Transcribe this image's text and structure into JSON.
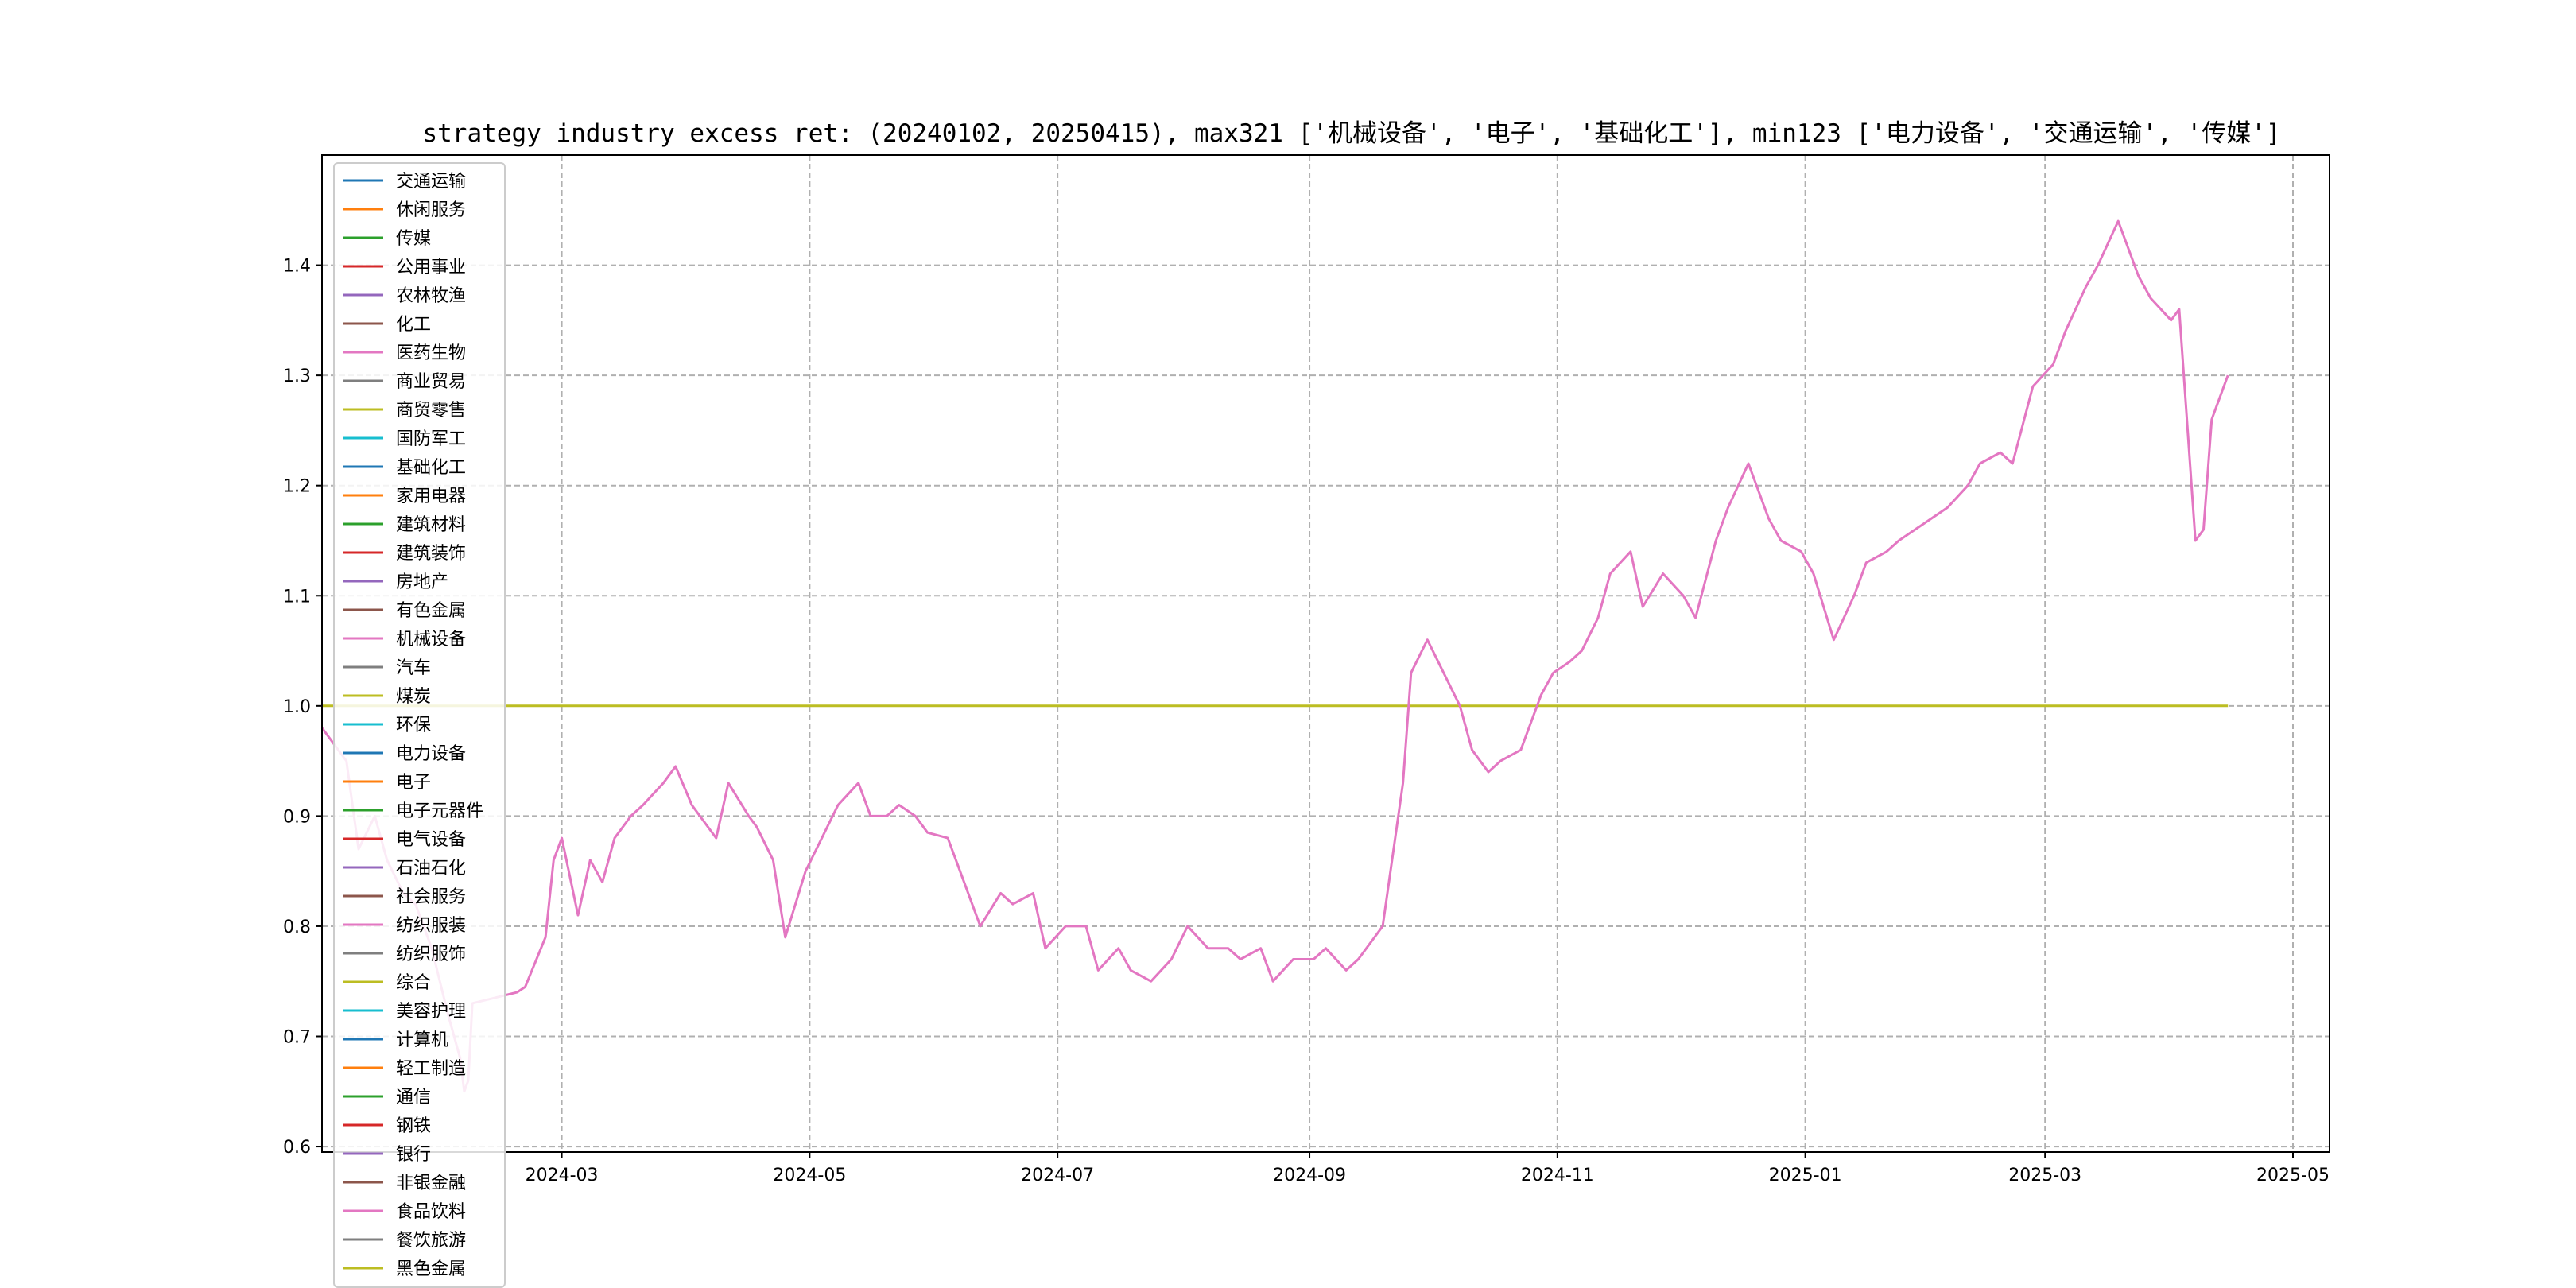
{
  "chart_data": {
    "type": "line",
    "title": "strategy industry excess ret: (20240102, 20250415), max321 ['机械设备', '电子', '基础化工'], min123 ['电力设备', '交通运输', '传媒']",
    "xlabel": "",
    "ylabel": "",
    "xlim": [
      "2024-01-02",
      "2025-05-10"
    ],
    "ylim": [
      0.595,
      1.5
    ],
    "grid": true,
    "legend_location": "left",
    "x_ticks": [
      "2024-03-01",
      "2024-05-01",
      "2024-07-01",
      "2024-09-01",
      "2024-11-01",
      "2025-01-01",
      "2025-03-01",
      "2025-05-01"
    ],
    "x_tick_labels": [
      "2024-03",
      "2024-05",
      "2024-07",
      "2024-09",
      "2024-11",
      "2025-01",
      "2025-03",
      "2025-05"
    ],
    "y_ticks": [
      0.6,
      0.7,
      0.8,
      0.9,
      1.0,
      1.1,
      1.2,
      1.3,
      1.4
    ],
    "y_tick_labels": [
      "0.6",
      "0.7",
      "0.8",
      "0.9",
      "1.0",
      "1.1",
      "1.2",
      "1.3",
      "1.4"
    ],
    "legend": [
      {
        "label": "交通运输",
        "color": "#1f77b4"
      },
      {
        "label": "休闲服务",
        "color": "#ff7f0e"
      },
      {
        "label": "传媒",
        "color": "#2ca02c"
      },
      {
        "label": "公用事业",
        "color": "#d62728"
      },
      {
        "label": "农林牧渔",
        "color": "#9467bd"
      },
      {
        "label": "化工",
        "color": "#8c564b"
      },
      {
        "label": "医药生物",
        "color": "#e377c2"
      },
      {
        "label": "商业贸易",
        "color": "#7f7f7f"
      },
      {
        "label": "商贸零售",
        "color": "#bcbd22"
      },
      {
        "label": "国防军工",
        "color": "#17becf"
      },
      {
        "label": "基础化工",
        "color": "#1f77b4"
      },
      {
        "label": "家用电器",
        "color": "#ff7f0e"
      },
      {
        "label": "建筑材料",
        "color": "#2ca02c"
      },
      {
        "label": "建筑装饰",
        "color": "#d62728"
      },
      {
        "label": "房地产",
        "color": "#9467bd"
      },
      {
        "label": "有色金属",
        "color": "#8c564b"
      },
      {
        "label": "机械设备",
        "color": "#e377c2"
      },
      {
        "label": "汽车",
        "color": "#7f7f7f"
      },
      {
        "label": "煤炭",
        "color": "#bcbd22"
      },
      {
        "label": "环保",
        "color": "#17becf"
      },
      {
        "label": "电力设备",
        "color": "#1f77b4"
      },
      {
        "label": "电子",
        "color": "#ff7f0e"
      },
      {
        "label": "电子元器件",
        "color": "#2ca02c"
      },
      {
        "label": "电气设备",
        "color": "#d62728"
      },
      {
        "label": "石油石化",
        "color": "#9467bd"
      },
      {
        "label": "社会服务",
        "color": "#8c564b"
      },
      {
        "label": "纺织服装",
        "color": "#e377c2"
      },
      {
        "label": "纺织服饰",
        "color": "#7f7f7f"
      },
      {
        "label": "综合",
        "color": "#bcbd22"
      },
      {
        "label": "美容护理",
        "color": "#17becf"
      },
      {
        "label": "计算机",
        "color": "#1f77b4"
      },
      {
        "label": "轻工制造",
        "color": "#ff7f0e"
      },
      {
        "label": "通信",
        "color": "#2ca02c"
      },
      {
        "label": "钢铁",
        "color": "#d62728"
      },
      {
        "label": "银行",
        "color": "#9467bd"
      },
      {
        "label": "非银金融",
        "color": "#8c564b"
      },
      {
        "label": "食品饮料",
        "color": "#e377c2"
      },
      {
        "label": "餐饮旅游",
        "color": "#7f7f7f"
      },
      {
        "label": "黑色金属",
        "color": "#bcbd22"
      }
    ],
    "series": [
      {
        "name": "黑色金属",
        "color": "#bcbd22",
        "x": [
          "2024-01-02",
          "2025-04-15"
        ],
        "y": [
          1.0,
          1.0
        ]
      },
      {
        "name": "机械设备",
        "color": "#e377c2",
        "x": [
          "2024-01-02",
          "2024-01-08",
          "2024-01-11",
          "2024-01-15",
          "2024-01-18",
          "2024-01-22",
          "2024-01-25",
          "2024-01-29",
          "2024-01-31",
          "2024-02-02",
          "2024-02-05",
          "2024-02-06",
          "2024-02-07",
          "2024-02-08",
          "2024-02-19",
          "2024-02-21",
          "2024-02-26",
          "2024-02-28",
          "2024-03-01",
          "2024-03-05",
          "2024-03-08",
          "2024-03-11",
          "2024-03-14",
          "2024-03-18",
          "2024-03-21",
          "2024-03-26",
          "2024-03-29",
          "2024-04-02",
          "2024-04-08",
          "2024-04-11",
          "2024-04-16",
          "2024-04-18",
          "2024-04-22",
          "2024-04-25",
          "2024-04-30",
          "2024-05-08",
          "2024-05-13",
          "2024-05-16",
          "2024-05-20",
          "2024-05-23",
          "2024-05-27",
          "2024-05-30",
          "2024-06-04",
          "2024-06-07",
          "2024-06-12",
          "2024-06-17",
          "2024-06-20",
          "2024-06-25",
          "2024-06-28",
          "2024-07-03",
          "2024-07-08",
          "2024-07-11",
          "2024-07-16",
          "2024-07-19",
          "2024-07-24",
          "2024-07-29",
          "2024-08-02",
          "2024-08-07",
          "2024-08-12",
          "2024-08-15",
          "2024-08-20",
          "2024-08-23",
          "2024-08-28",
          "2024-09-02",
          "2024-09-05",
          "2024-09-10",
          "2024-09-13",
          "2024-09-19",
          "2024-09-24",
          "2024-09-26",
          "2024-09-30",
          "2024-10-08",
          "2024-10-11",
          "2024-10-15",
          "2024-10-18",
          "2024-10-23",
          "2024-10-28",
          "2024-10-31",
          "2024-11-04",
          "2024-11-07",
          "2024-11-11",
          "2024-11-14",
          "2024-11-19",
          "2024-11-22",
          "2024-11-27",
          "2024-12-02",
          "2024-12-05",
          "2024-12-10",
          "2024-12-13",
          "2024-12-18",
          "2024-12-23",
          "2024-12-26",
          "2024-12-31",
          "2025-01-03",
          "2025-01-08",
          "2025-01-13",
          "2025-01-16",
          "2025-01-21",
          "2025-01-24",
          "2025-02-05",
          "2025-02-10",
          "2025-02-13",
          "2025-02-18",
          "2025-02-21",
          "2025-02-26",
          "2025-03-03",
          "2025-03-06",
          "2025-03-11",
          "2025-03-14",
          "2025-03-19",
          "2025-03-24",
          "2025-03-27",
          "2025-04-01",
          "2025-04-03",
          "2025-04-07",
          "2025-04-09",
          "2025-04-11",
          "2025-04-15"
        ],
        "y": [
          0.98,
          0.95,
          0.87,
          0.9,
          0.86,
          0.83,
          0.82,
          0.78,
          0.75,
          0.72,
          0.68,
          0.65,
          0.66,
          0.73,
          0.74,
          0.745,
          0.79,
          0.86,
          0.88,
          0.81,
          0.86,
          0.84,
          0.88,
          0.9,
          0.91,
          0.93,
          0.945,
          0.91,
          0.88,
          0.93,
          0.9,
          0.89,
          0.86,
          0.79,
          0.85,
          0.91,
          0.93,
          0.9,
          0.9,
          0.91,
          0.9,
          0.885,
          0.88,
          0.85,
          0.8,
          0.83,
          0.82,
          0.83,
          0.78,
          0.8,
          0.8,
          0.76,
          0.78,
          0.76,
          0.75,
          0.77,
          0.8,
          0.78,
          0.78,
          0.77,
          0.78,
          0.75,
          0.77,
          0.77,
          0.78,
          0.76,
          0.77,
          0.8,
          0.93,
          1.03,
          1.06,
          1.0,
          0.96,
          0.94,
          0.95,
          0.96,
          1.01,
          1.03,
          1.04,
          1.05,
          1.08,
          1.12,
          1.14,
          1.09,
          1.12,
          1.1,
          1.08,
          1.15,
          1.18,
          1.22,
          1.17,
          1.15,
          1.14,
          1.12,
          1.06,
          1.1,
          1.13,
          1.14,
          1.15,
          1.18,
          1.2,
          1.22,
          1.23,
          1.22,
          1.29,
          1.31,
          1.34,
          1.38,
          1.4,
          1.44,
          1.39,
          1.37,
          1.35,
          1.36,
          1.15,
          1.16,
          1.26,
          1.3
        ]
      }
    ]
  }
}
